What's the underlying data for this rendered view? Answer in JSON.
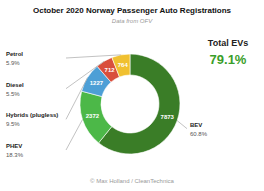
{
  "chart_data": {
    "type": "pie",
    "title": "October 2020 Norway Passenger Auto Registrations",
    "subtitle": "Data from OFV",
    "categories": [
      "BEV",
      "PHEV",
      "Hybrids (plugless)",
      "Diesel",
      "Petrol"
    ],
    "values": [
      7873,
      2372,
      1227,
      712,
      764
    ],
    "colors": [
      "#3a7d27",
      "#4cb848",
      "#4d9fd6",
      "#d94f3d",
      "#f0c030"
    ],
    "data_labels": true,
    "shares": [
      {
        "value": 60.8,
        "label": "60.8%"
      },
      {
        "value": 18.3,
        "label": "18.3%"
      },
      {
        "value": 9.5,
        "label": "9.5%"
      },
      {
        "value": 5.5,
        "label": "5.5%"
      },
      {
        "value": 5.9,
        "label": "5.9%"
      }
    ],
    "annotations": [
      {
        "text": "Total EVs",
        "value": 79.1,
        "label": "79.1%"
      }
    ],
    "footer": "© Max Holland / CleanTechnica"
  }
}
